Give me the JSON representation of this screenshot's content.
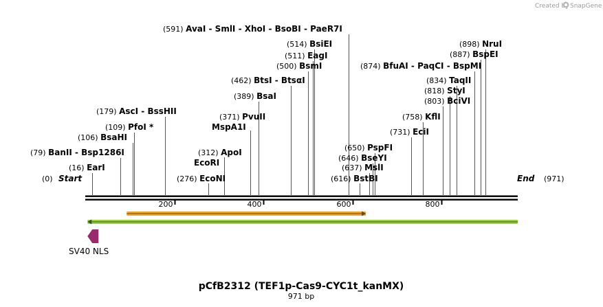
{
  "credit": {
    "prefix": "Created by",
    "brand": "SnapGene"
  },
  "map": {
    "title": "pCfB2312 (TEF1p-Cas9-CYC1t_kanMX)",
    "length_label": "971 bp",
    "length": 971,
    "start": {
      "position": "(0)",
      "label": "Start"
    },
    "end": {
      "label": "End",
      "position": "(971)"
    },
    "ticks": [
      200,
      400,
      600,
      800
    ]
  },
  "sites": [
    {
      "pos": 16,
      "text": "(16)",
      "names": [
        "EarI"
      ]
    },
    {
      "pos": 79,
      "text": "(79)",
      "names": [
        "BanII",
        "Bsp1286I"
      ]
    },
    {
      "pos": 106,
      "text": "(106)",
      "names": [
        "BsaHI"
      ]
    },
    {
      "pos": 109,
      "text": "(109)",
      "names": [
        "PfoI *"
      ]
    },
    {
      "pos": 179,
      "text": "(179)",
      "names": [
        "AscI",
        "BssHII"
      ]
    },
    {
      "pos": 276,
      "text": "(276)",
      "names": [
        "EcoNI"
      ]
    },
    {
      "pos": 312,
      "text": "(312)",
      "names": [
        "ApoI"
      ]
    },
    {
      "pos": 312,
      "text": "",
      "names": [
        "EcoRI"
      ]
    },
    {
      "pos": 371,
      "text": "(371)",
      "names": [
        "PvuII"
      ]
    },
    {
      "pos": 371,
      "text": "",
      "names": [
        "MspA1I"
      ]
    },
    {
      "pos": 389,
      "text": "(389)",
      "names": [
        "BsaI"
      ]
    },
    {
      "pos": 462,
      "text": "(462)",
      "names": [
        "BtsI",
        "BtsαI"
      ]
    },
    {
      "pos": 500,
      "text": "(500)",
      "names": [
        "BsmI"
      ]
    },
    {
      "pos": 511,
      "text": "(511)",
      "names": [
        "EagI"
      ]
    },
    {
      "pos": 514,
      "text": "(514)",
      "names": [
        "BsiEI"
      ]
    },
    {
      "pos": 591,
      "text": "(591)",
      "names": [
        "AvaI",
        "SmlI",
        "XhoI",
        "BsoBI",
        "PaeR7I"
      ]
    },
    {
      "pos": 616,
      "text": "(616)",
      "names": [
        "BstBI"
      ]
    },
    {
      "pos": 637,
      "text": "(637)",
      "names": [
        "MslI"
      ]
    },
    {
      "pos": 646,
      "text": "(646)",
      "names": [
        "BseYI"
      ]
    },
    {
      "pos": 650,
      "text": "(650)",
      "names": [
        "PspFI"
      ]
    },
    {
      "pos": 731,
      "text": "(731)",
      "names": [
        "EciI"
      ]
    },
    {
      "pos": 758,
      "text": "(758)",
      "names": [
        "KflI"
      ]
    },
    {
      "pos": 803,
      "text": "(803)",
      "names": [
        "BciVI"
      ]
    },
    {
      "pos": 818,
      "text": "(818)",
      "names": [
        "StyI"
      ]
    },
    {
      "pos": 834,
      "text": "(834)",
      "names": [
        "TaqII"
      ]
    },
    {
      "pos": 874,
      "text": "(874)",
      "names": [
        "BfuAI",
        "PaqCI",
        "BspMI"
      ]
    },
    {
      "pos": 887,
      "text": "(887)",
      "names": [
        "BspEI"
      ]
    },
    {
      "pos": 898,
      "text": "(898)",
      "names": [
        "NruI"
      ]
    }
  ],
  "features": {
    "orange_bar": {
      "from": 93,
      "to": 630,
      "color": "#f0a32a"
    },
    "green_bar": {
      "from": 5,
      "to": 971,
      "color": "#9ecf3c"
    },
    "sv40_nls": {
      "label": "SV40 NLS",
      "color": "#9a2a6a",
      "pos": 5
    }
  }
}
